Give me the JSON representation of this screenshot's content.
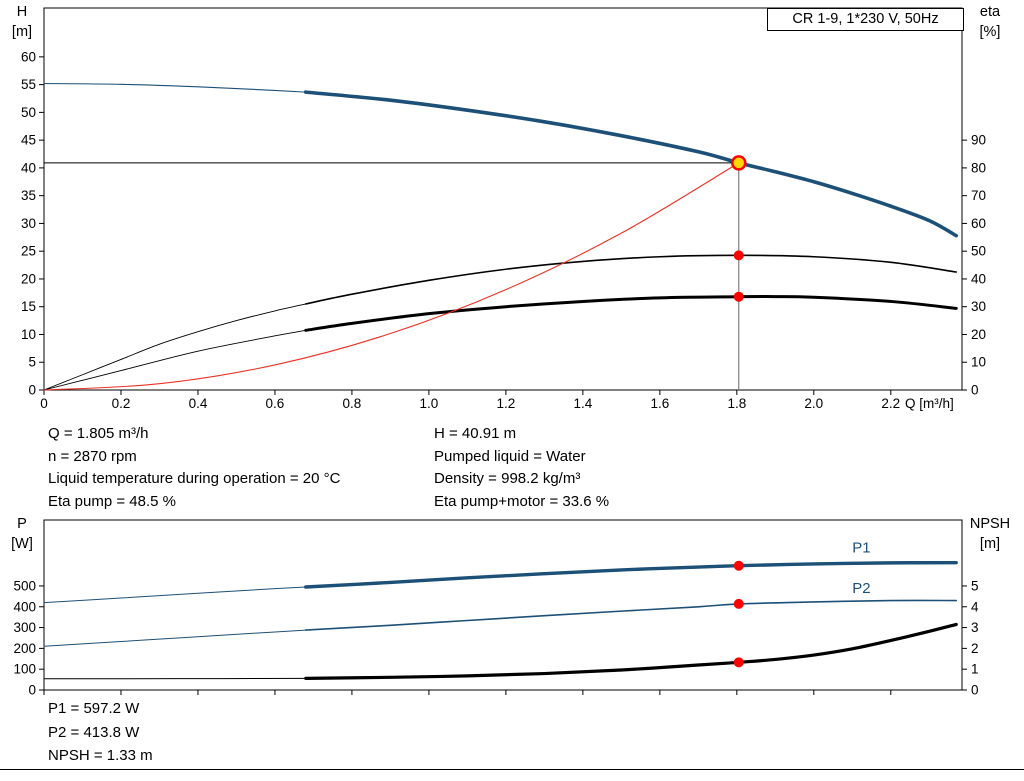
{
  "title": "CR 1-9, 1*230 V, 50Hz",
  "info_top": {
    "left": [
      "Q = 1.805 m³/h",
      "n = 2870 rpm",
      "Liquid temperature during operation = 20 °C",
      "Eta pump = 48.5 %"
    ],
    "right": [
      "H = 40.91 m",
      "Pumped liquid = Water",
      "Density = 998.2 kg/m³",
      "Eta pump+motor = 33.6 %"
    ]
  },
  "info_bottom": [
    "P1 = 597.2 W",
    "P2 = 413.8 W",
    "NPSH = 1.33 m"
  ],
  "chart_data": [
    {
      "type": "line",
      "name": "qh-and-efficiency-chart",
      "title": "CR 1-9, 1*230 V, 50Hz",
      "grid": false,
      "legend_position": "none",
      "x_axis": {
        "label": "Q [m³/h]",
        "min": 0,
        "max": 2.385,
        "show_tick_labels": true,
        "ticks": [
          "0",
          "0.2",
          "0.4",
          "0.6",
          "0.8",
          "1.0",
          "1.2",
          "1.4",
          "1.6",
          "1.8",
          "2.0",
          "2.2"
        ]
      },
      "y_left": {
        "label": "H",
        "unit": "[m]",
        "min": 0,
        "max": 68.8,
        "ticks": [
          0,
          5,
          10,
          15,
          20,
          25,
          30,
          35,
          40,
          45,
          50,
          55,
          60
        ]
      },
      "y_right": {
        "label": "eta",
        "unit": "[%]",
        "min": 0,
        "max": 137.6,
        "ticks": [
          0,
          10,
          20,
          30,
          40,
          50,
          60,
          70,
          80,
          90
        ]
      },
      "series": [
        {
          "name": "pump-curve-low-flow",
          "axis": "left",
          "color": "#1d5077",
          "width": 1.1,
          "points": [
            [
              0,
              55.2
            ],
            [
              0.2,
              55.05
            ],
            [
              0.4,
              54.6
            ],
            [
              0.6,
              53.95
            ],
            [
              0.68,
              53.65
            ]
          ]
        },
        {
          "name": "pump-curve",
          "axis": "left",
          "color": "#1d5077",
          "width": 3.6,
          "points": [
            [
              0.68,
              53.65
            ],
            [
              0.9,
              52.2
            ],
            [
              1.1,
              50.4
            ],
            [
              1.3,
              48.3
            ],
            [
              1.5,
              45.8
            ],
            [
              1.7,
              42.9
            ],
            [
              1.805,
              40.91
            ],
            [
              1.9,
              39.3
            ],
            [
              2.0,
              37.5
            ],
            [
              2.1,
              35.4
            ],
            [
              2.2,
              33.1
            ],
            [
              2.3,
              30.5
            ],
            [
              2.37,
              27.8
            ]
          ]
        },
        {
          "name": "eta-pump-low-flow",
          "axis": "right",
          "color": "#000000",
          "width": 0.9,
          "points": [
            [
              0,
              0
            ],
            [
              0.1,
              5.5
            ],
            [
              0.2,
              11
            ],
            [
              0.3,
              16.5
            ],
            [
              0.4,
              21
            ],
            [
              0.5,
              25
            ],
            [
              0.6,
              28.5
            ],
            [
              0.68,
              31
            ]
          ]
        },
        {
          "name": "eta-pump",
          "axis": "right",
          "color": "#000000",
          "width": 1.6,
          "points": [
            [
              0.68,
              31
            ],
            [
              0.8,
              34.5
            ],
            [
              1.0,
              39.5
            ],
            [
              1.2,
              43.5
            ],
            [
              1.4,
              46.3
            ],
            [
              1.6,
              48.0
            ],
            [
              1.805,
              48.5
            ],
            [
              2.0,
              48.0
            ],
            [
              2.2,
              46.0
            ],
            [
              2.37,
              42.5
            ]
          ]
        },
        {
          "name": "eta-pump-motor-low-flow",
          "axis": "right",
          "color": "#000000",
          "width": 0.9,
          "points": [
            [
              0,
              0
            ],
            [
              0.2,
              7
            ],
            [
              0.4,
              14
            ],
            [
              0.6,
              19.5
            ],
            [
              0.68,
              21.5
            ]
          ]
        },
        {
          "name": "eta-pump-motor",
          "axis": "right",
          "color": "#000000",
          "width": 3.0,
          "points": [
            [
              0.68,
              21.5
            ],
            [
              0.8,
              24
            ],
            [
              1.0,
              27.5
            ],
            [
              1.2,
              30
            ],
            [
              1.4,
              31.9
            ],
            [
              1.6,
              33.2
            ],
            [
              1.805,
              33.6
            ],
            [
              1.9,
              33.65
            ],
            [
              2.0,
              33.4
            ],
            [
              2.2,
              31.9
            ],
            [
              2.37,
              29.4
            ]
          ]
        },
        {
          "name": "system-curve",
          "axis": "left",
          "color": "#ee3124",
          "width": 1.1,
          "points": [
            [
              0,
              0
            ],
            [
              0.3,
              1.13
            ],
            [
              0.6,
              4.52
            ],
            [
              0.9,
              10.17
            ],
            [
              1.2,
              18.08
            ],
            [
              1.5,
              28.25
            ],
            [
              1.805,
              40.91
            ]
          ]
        }
      ],
      "ref_lines": [
        {
          "name": "duty-head-line",
          "axis": "left",
          "x1": 0,
          "y1": 40.91,
          "x2": 1.805,
          "y2": 40.91,
          "color": "#000000",
          "width": 1
        },
        {
          "name": "duty-flow-line",
          "axis": "left",
          "x1": 1.805,
          "y1": 40.91,
          "x2": 1.805,
          "y2": 0,
          "color": "#7f7f7f",
          "width": 1.2
        }
      ],
      "markers": [
        {
          "name": "duty-point",
          "x": 1.805,
          "y": 40.91,
          "axis": "left",
          "r": 6.5,
          "fill": "#ffd800",
          "stroke": "#ff0000",
          "stroke_width": 2.5
        },
        {
          "name": "eta-pump-point",
          "x": 1.805,
          "y": 48.5,
          "axis": "right",
          "r": 5,
          "fill": "#ff0000"
        },
        {
          "name": "eta-pump-motor-point",
          "x": 1.805,
          "y": 33.6,
          "axis": "right",
          "r": 5,
          "fill": "#ff0000"
        }
      ]
    },
    {
      "type": "line",
      "name": "power-and-npsh-chart",
      "grid": false,
      "legend_position": "inline-labels",
      "x_axis": {
        "label": "",
        "min": 0,
        "max": 2.385,
        "show_tick_labels": false,
        "ticks": [
          "0",
          "0.2",
          "0.4",
          "0.6",
          "0.8",
          "1.0",
          "1.2",
          "1.4",
          "1.6",
          "1.8",
          "2.0",
          "2.2"
        ]
      },
      "y_left": {
        "label": "P",
        "unit": "[W]",
        "min": 0,
        "max": 817,
        "ticks": [
          0,
          100,
          200,
          300,
          400,
          500
        ]
      },
      "y_right": {
        "label": "NPSH",
        "unit": "[m]",
        "min": 0,
        "max": 8.17,
        "ticks": [
          0,
          1,
          2,
          3,
          4,
          5
        ]
      },
      "series": [
        {
          "name": "p1-low-flow",
          "axis": "left",
          "color": "#1d5077",
          "width": 1,
          "points": [
            [
              0,
              420
            ],
            [
              0.2,
              442
            ],
            [
              0.4,
              465
            ],
            [
              0.6,
              487
            ],
            [
              0.68,
              495
            ]
          ]
        },
        {
          "name": "p1",
          "axis": "left",
          "color": "#1d5077",
          "width": 3.4,
          "label": "P1",
          "label_at": [
            2.1,
            662
          ],
          "points": [
            [
              0.68,
              495
            ],
            [
              0.9,
              517
            ],
            [
              1.1,
              539
            ],
            [
              1.3,
              559
            ],
            [
              1.5,
              577
            ],
            [
              1.7,
              591
            ],
            [
              1.805,
              597.2
            ],
            [
              2.0,
              606
            ],
            [
              2.2,
              611
            ],
            [
              2.37,
              612
            ]
          ]
        },
        {
          "name": "p2-low-flow",
          "axis": "left",
          "color": "#1d5077",
          "width": 1,
          "points": [
            [
              0,
              210
            ],
            [
              0.2,
              233
            ],
            [
              0.4,
              256
            ],
            [
              0.6,
              279
            ],
            [
              0.68,
              288
            ]
          ]
        },
        {
          "name": "p2",
          "axis": "left",
          "color": "#1d5077",
          "width": 1.6,
          "label": "P2",
          "label_at": [
            2.1,
            465
          ],
          "points": [
            [
              0.68,
              288
            ],
            [
              0.9,
              311
            ],
            [
              1.1,
              334
            ],
            [
              1.3,
              357
            ],
            [
              1.5,
              379
            ],
            [
              1.7,
              400
            ],
            [
              1.805,
              413.8
            ],
            [
              2.0,
              423
            ],
            [
              2.2,
              430
            ],
            [
              2.37,
              430
            ]
          ]
        },
        {
          "name": "npsh-low-flow",
          "axis": "right",
          "color": "#000000",
          "width": 1,
          "points": [
            [
              0,
              0.54
            ],
            [
              0.35,
              0.545
            ],
            [
              0.68,
              0.56
            ]
          ]
        },
        {
          "name": "npsh",
          "axis": "right",
          "color": "#000000",
          "width": 3.2,
          "points": [
            [
              0.68,
              0.56
            ],
            [
              0.9,
              0.61
            ],
            [
              1.1,
              0.68
            ],
            [
              1.3,
              0.79
            ],
            [
              1.5,
              0.96
            ],
            [
              1.7,
              1.2
            ],
            [
              1.805,
              1.33
            ],
            [
              1.9,
              1.47
            ],
            [
              2.0,
              1.68
            ],
            [
              2.1,
              1.98
            ],
            [
              2.2,
              2.38
            ],
            [
              2.3,
              2.82
            ],
            [
              2.37,
              3.15
            ]
          ]
        }
      ],
      "ref_lines": [],
      "markers": [
        {
          "name": "p1-point",
          "x": 1.805,
          "y": 597.2,
          "axis": "left",
          "r": 5,
          "fill": "#ff0000"
        },
        {
          "name": "p2-point",
          "x": 1.805,
          "y": 413.8,
          "axis": "left",
          "r": 5,
          "fill": "#ff0000"
        },
        {
          "name": "npsh-point",
          "x": 1.805,
          "y": 1.33,
          "axis": "right",
          "r": 5,
          "fill": "#ff0000"
        }
      ]
    }
  ]
}
